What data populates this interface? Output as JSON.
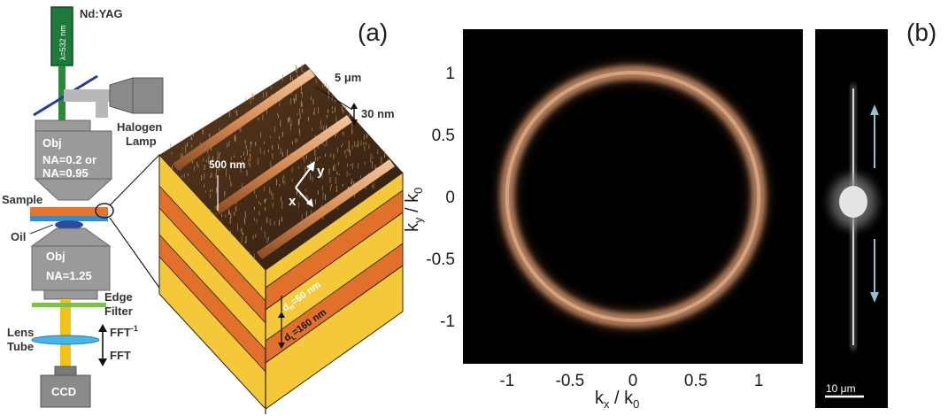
{
  "panel_a": {
    "label": "(a)",
    "laser": "Nd:YAG",
    "wavelength": "λ=532 nm",
    "halogen_line1": "Halogen",
    "halogen_line2": "Lamp",
    "obj1_title": "Obj",
    "obj1_na_line1": "NA=0.2 or",
    "obj1_na_line2": "NA=0.95",
    "sample": "Sample",
    "oil": "Oil",
    "obj2_title": "Obj",
    "obj2_na": "NA=1.25",
    "edge_line1": "Edge",
    "edge_line2": "Filter",
    "lens_line1": "Lens",
    "lens_line2": "Tube",
    "fft_inv": "FFT",
    "fft_inv_sup": "-1",
    "fft": "FFT",
    "ccd": "CCD",
    "dim_5um": "5 μm",
    "dim_30nm": "30 nm",
    "dim_500nm": "500 nm",
    "axis_x": "x",
    "axis_y": "y",
    "layer_h": "d",
    "layer_h_sub": "H",
    "layer_h_val": "=60 nm",
    "layer_l": "d",
    "layer_l_sub": "L",
    "layer_l_val": "=160 nm",
    "colors": {
      "laser": "#1e7a3a",
      "beam_green": "#2d8a3a",
      "beam_yellow": "#f2c21a",
      "sample_orange": "#e8732a",
      "sample_blue": "#2e8fd6",
      "layer_yellow": "#f5c83a",
      "layer_orange": "#e0702a",
      "ridge": "#e3a070"
    }
  },
  "panel_b": {
    "label": "(b)",
    "scalebar": "10 μm"
  },
  "chart_data": {
    "type": "heatmap",
    "title": "",
    "xlabel": "kx / k0",
    "ylabel": "ky / k0",
    "x_ticks": [
      -1,
      -0.5,
      0,
      0.5,
      1
    ],
    "y_ticks": [
      1,
      0.5,
      0,
      -0.5,
      -1
    ],
    "xlim": [
      -1.35,
      1.35
    ],
    "ylim": [
      -1.35,
      1.35
    ],
    "ring_radius": 1.0,
    "bright_arcs_at_ky": [
      1.0,
      -1.0
    ],
    "grid": false,
    "background": "#000000",
    "ring_color": "#c9906a"
  }
}
